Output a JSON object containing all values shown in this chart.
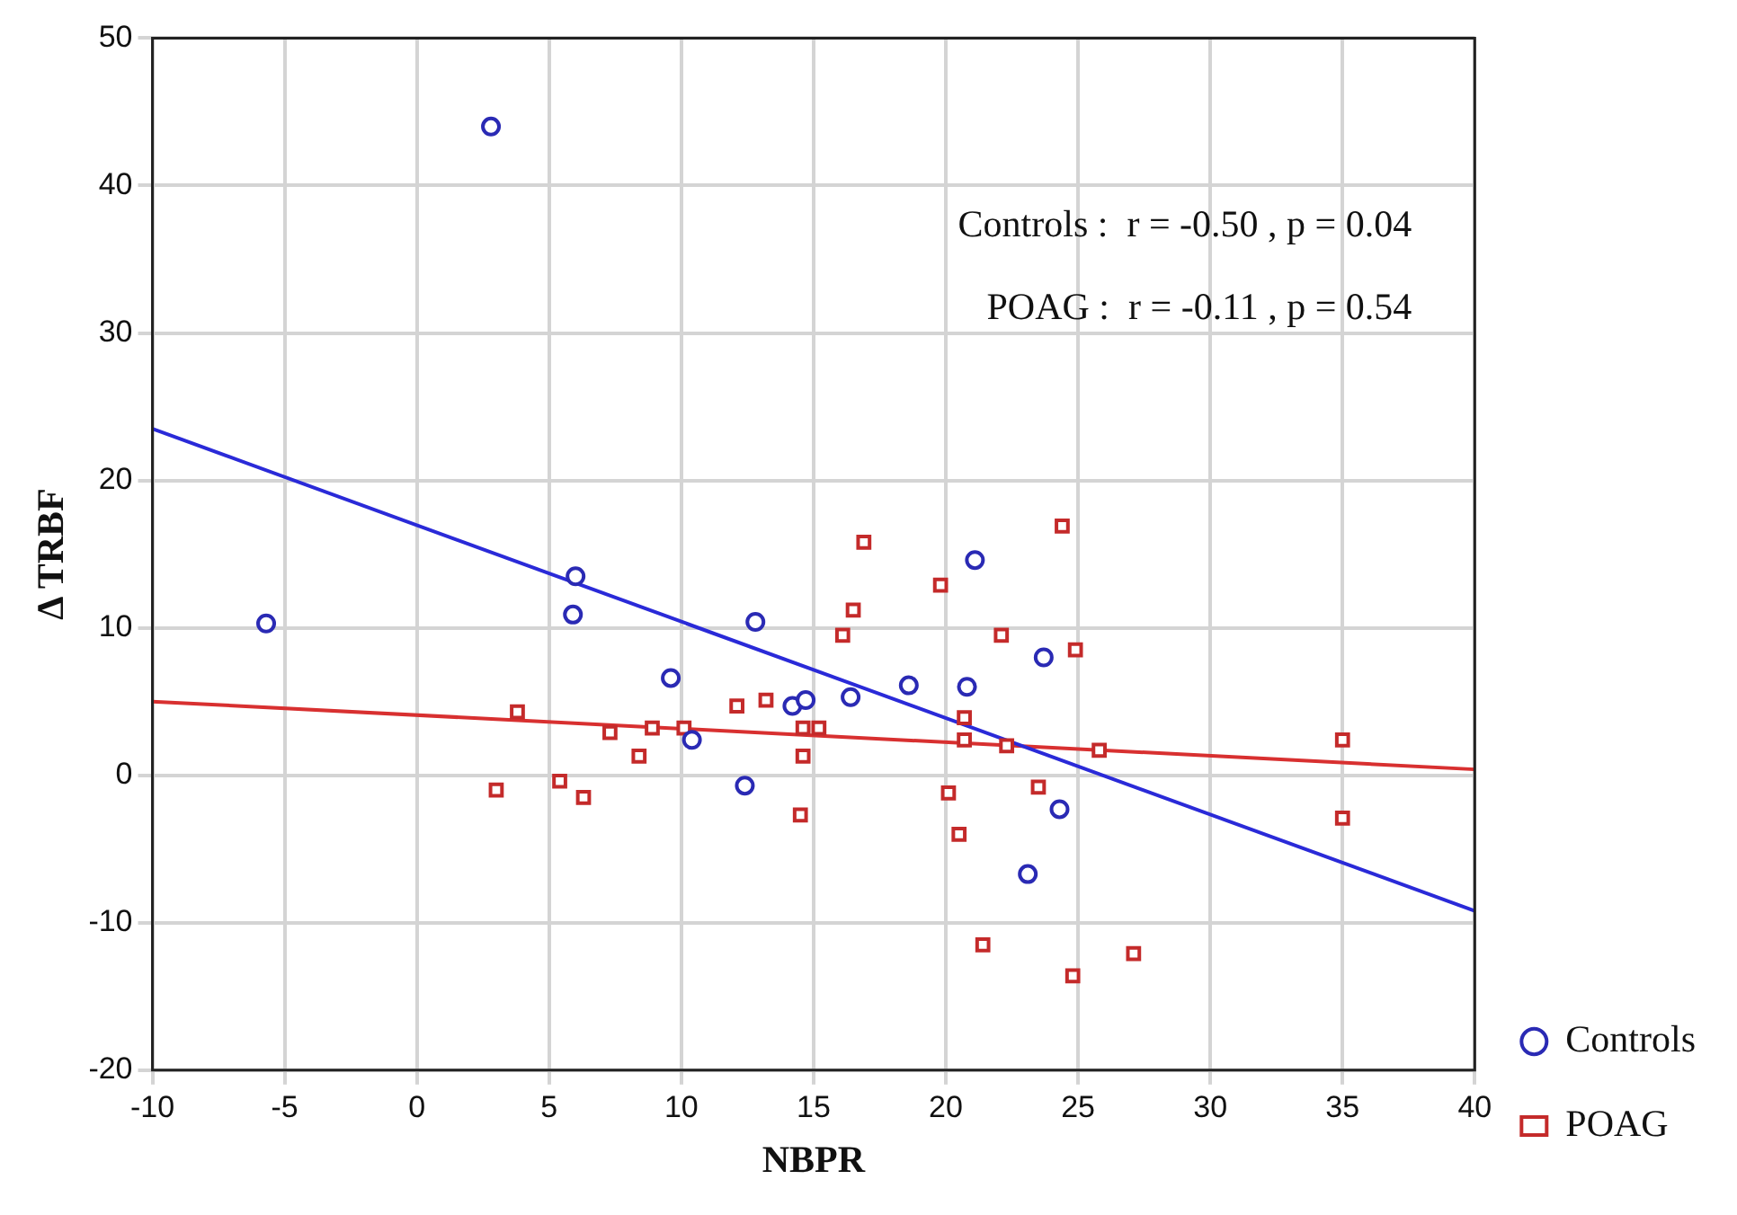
{
  "chart_data": {
    "type": "scatter",
    "xlabel": "NBPR",
    "ylabel": "Δ TRBF",
    "xlim": [
      -10,
      40
    ],
    "xticks": [
      -10,
      -5,
      0,
      5,
      10,
      15,
      20,
      25,
      30,
      35,
      40
    ],
    "ylim": [
      -20,
      50
    ],
    "yticks": [
      -20,
      -10,
      0,
      10,
      20,
      30,
      40,
      50
    ],
    "grid": true,
    "legend": "bottom right",
    "annotations": [
      "Controls :  r = -0.50 , p = 0.04",
      "POAG :  r = -0.11 , p = 0.54"
    ],
    "series": [
      {
        "name": "Controls",
        "type": "scatter",
        "marker": "circle",
        "color": "#2a2ab4",
        "x": [
          2.8,
          -5.7,
          6.0,
          5.9,
          12.8,
          9.6,
          10.4,
          12.4,
          14.2,
          14.7,
          16.4,
          21.1,
          23.7,
          18.6,
          20.8,
          24.3,
          23.1
        ],
        "values": [
          44,
          10.3,
          13.5,
          10.9,
          10.4,
          6.6,
          2.4,
          -0.7,
          4.7,
          5.1,
          5.3,
          14.6,
          8.0,
          6.1,
          6.0,
          -2.3,
          -6.7
        ]
      },
      {
        "name": "POAG",
        "type": "scatter",
        "marker": "square",
        "color": "#c42a2a",
        "x": [
          3.8,
          3.0,
          5.4,
          6.3,
          7.3,
          8.4,
          8.9,
          10.1,
          12.1,
          13.2,
          14.6,
          15.2,
          14.6,
          14.5,
          16.1,
          16.5,
          16.9,
          24.4,
          19.8,
          22.1,
          24.9,
          20.7,
          20.7,
          22.3,
          25.8,
          35.0,
          35.0,
          20.1,
          23.5,
          20.5,
          21.4,
          24.8,
          27.1
        ],
        "values": [
          4.3,
          -1.0,
          -0.4,
          -1.5,
          2.9,
          1.3,
          3.2,
          3.2,
          4.7,
          5.1,
          3.2,
          3.2,
          1.3,
          -2.7,
          9.5,
          11.2,
          15.8,
          16.9,
          12.9,
          9.5,
          8.5,
          3.9,
          2.4,
          2.0,
          1.7,
          2.4,
          -2.9,
          -1.2,
          -0.8,
          -4.0,
          -11.5,
          -13.6,
          -12.1
        ]
      },
      {
        "type": "line",
        "marker": "none",
        "color": "#2a2ad8",
        "x": [
          -10,
          40
        ],
        "values": [
          23.5,
          -9.2
        ]
      },
      {
        "type": "line",
        "marker": "none",
        "color": "#d83030",
        "x": [
          -10,
          40
        ],
        "values": [
          5.0,
          0.4
        ]
      }
    ]
  }
}
